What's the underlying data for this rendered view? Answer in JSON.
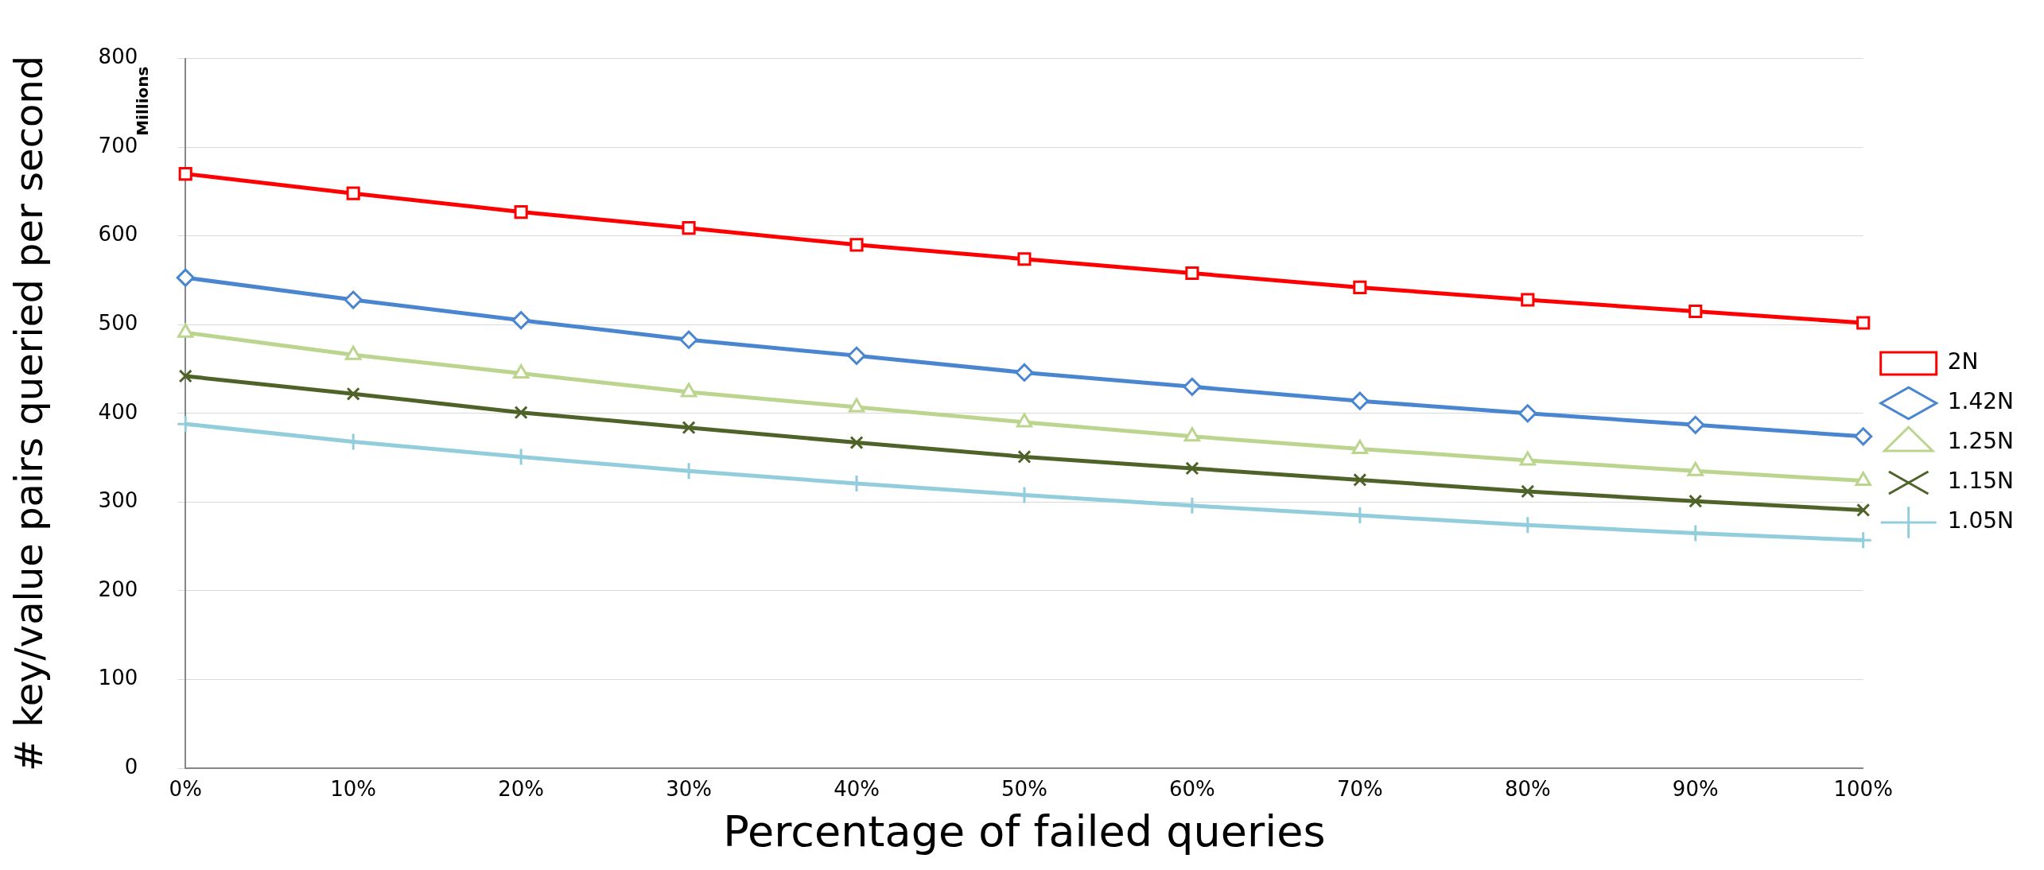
{
  "chart_data": {
    "type": "line",
    "xlabel": "Percentage of failed queries",
    "ylabel": "# key/value pairs queried per second",
    "annotations": [
      "Millions"
    ],
    "categories": [
      "0%",
      "10%",
      "20%",
      "30%",
      "40%",
      "50%",
      "60%",
      "70%",
      "80%",
      "90%",
      "100%"
    ],
    "ylim": [
      0,
      800
    ],
    "yticks": [
      0,
      100,
      200,
      300,
      400,
      500,
      600,
      700,
      800
    ],
    "grid": "y",
    "legend": "right",
    "line_style": "solid",
    "series": [
      {
        "name": "2N",
        "color": "#ff0000",
        "marker": "square",
        "values": [
          670,
          648,
          627,
          609,
          590,
          574,
          558,
          542,
          528,
          515,
          502
        ]
      },
      {
        "name": "1.42N",
        "color": "#4a86d0",
        "marker": "diamond",
        "values": [
          553,
          528,
          505,
          483,
          465,
          446,
          430,
          414,
          400,
          387,
          374
        ]
      },
      {
        "name": "1.25N",
        "color": "#bcd58e",
        "marker": "triangle",
        "values": [
          491,
          466,
          445,
          424,
          407,
          390,
          374,
          360,
          347,
          335,
          324
        ]
      },
      {
        "name": "1.15N",
        "color": "#4f6228",
        "marker": "cross",
        "values": [
          442,
          422,
          401,
          384,
          367,
          351,
          338,
          325,
          312,
          301,
          291
        ]
      },
      {
        "name": "1.05N",
        "color": "#92cddc",
        "marker": "plus",
        "values": [
          388,
          368,
          351,
          335,
          321,
          308,
          296,
          285,
          274,
          265,
          257
        ]
      }
    ]
  }
}
